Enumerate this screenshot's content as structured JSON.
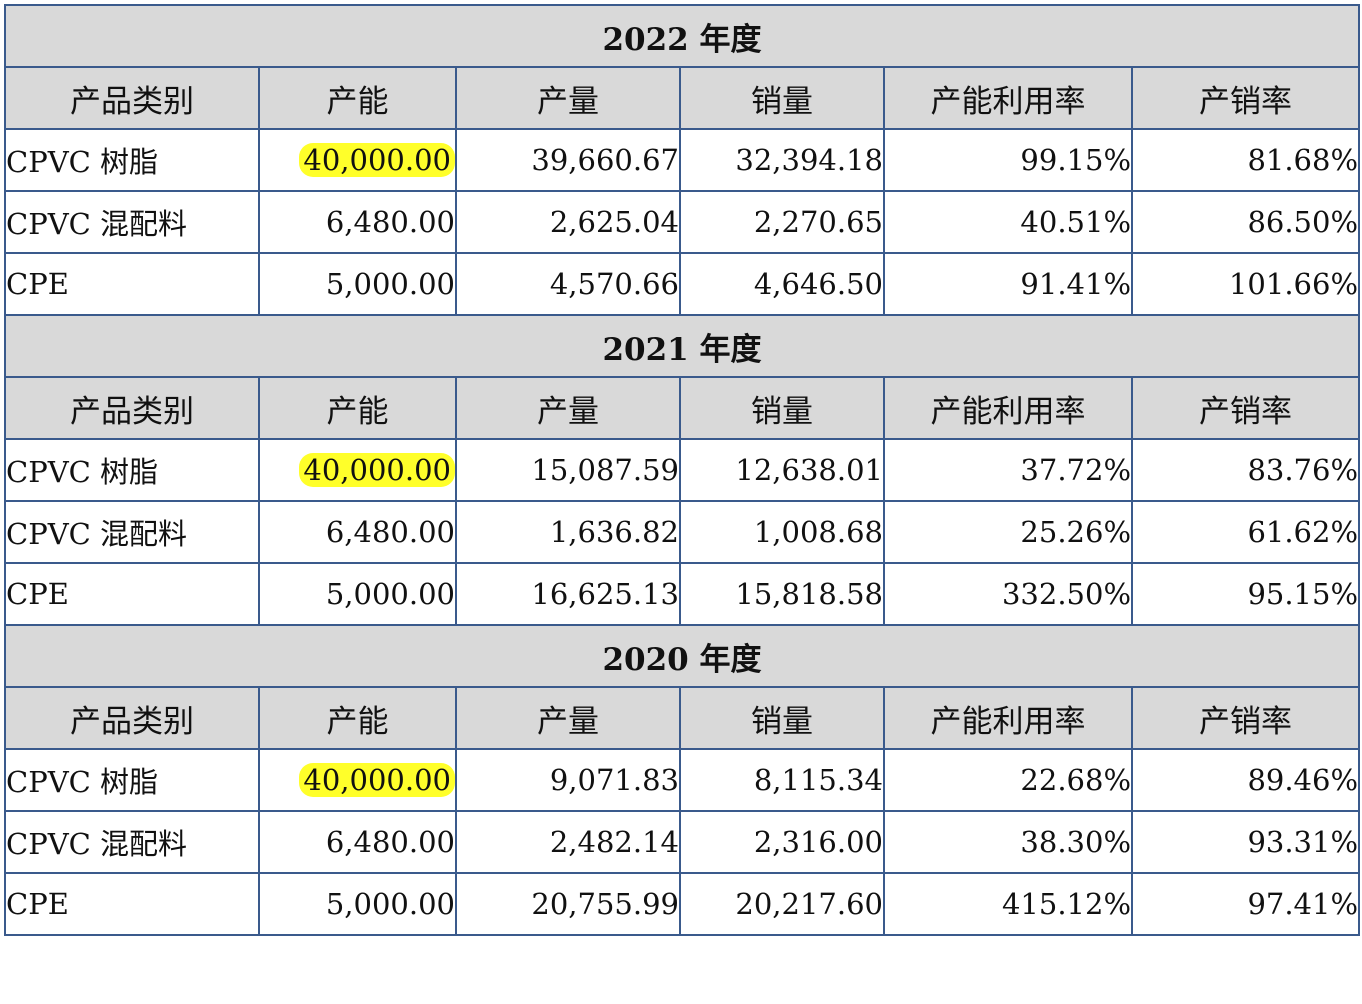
{
  "colors": {
    "header_bg": "#d9d9d9",
    "border": "#3a5a8c",
    "highlight": "#ffff2a"
  },
  "columns": [
    "产品类别",
    "产能",
    "产量",
    "销量",
    "产能利用率",
    "产销率"
  ],
  "years": [
    {
      "label": "2022 年度",
      "rows": [
        [
          "CPVC 树脂",
          "40,000.00",
          "39,660.67",
          "32,394.18",
          "99.15%",
          "81.68%"
        ],
        [
          "CPVC 混配料",
          "6,480.00",
          "2,625.04",
          "2,270.65",
          "40.51%",
          "86.50%"
        ],
        [
          "CPE",
          "5,000.00",
          "4,570.66",
          "4,646.50",
          "91.41%",
          "101.66%"
        ]
      ]
    },
    {
      "label": "2021 年度",
      "rows": [
        [
          "CPVC 树脂",
          "40,000.00",
          "15,087.59",
          "12,638.01",
          "37.72%",
          "83.76%"
        ],
        [
          "CPVC 混配料",
          "6,480.00",
          "1,636.82",
          "1,008.68",
          "25.26%",
          "61.62%"
        ],
        [
          "CPE",
          "5,000.00",
          "16,625.13",
          "15,818.58",
          "332.50%",
          "95.15%"
        ]
      ]
    },
    {
      "label": "2020 年度",
      "rows": [
        [
          "CPVC 树脂",
          "40,000.00",
          "9,071.83",
          "8,115.34",
          "22.68%",
          "89.46%"
        ],
        [
          "CPVC 混配料",
          "6,480.00",
          "2,482.14",
          "2,316.00",
          "38.30%",
          "93.31%"
        ],
        [
          "CPE",
          "5,000.00",
          "20,755.99",
          "20,217.60",
          "415.12%",
          "97.41%"
        ]
      ]
    }
  ]
}
